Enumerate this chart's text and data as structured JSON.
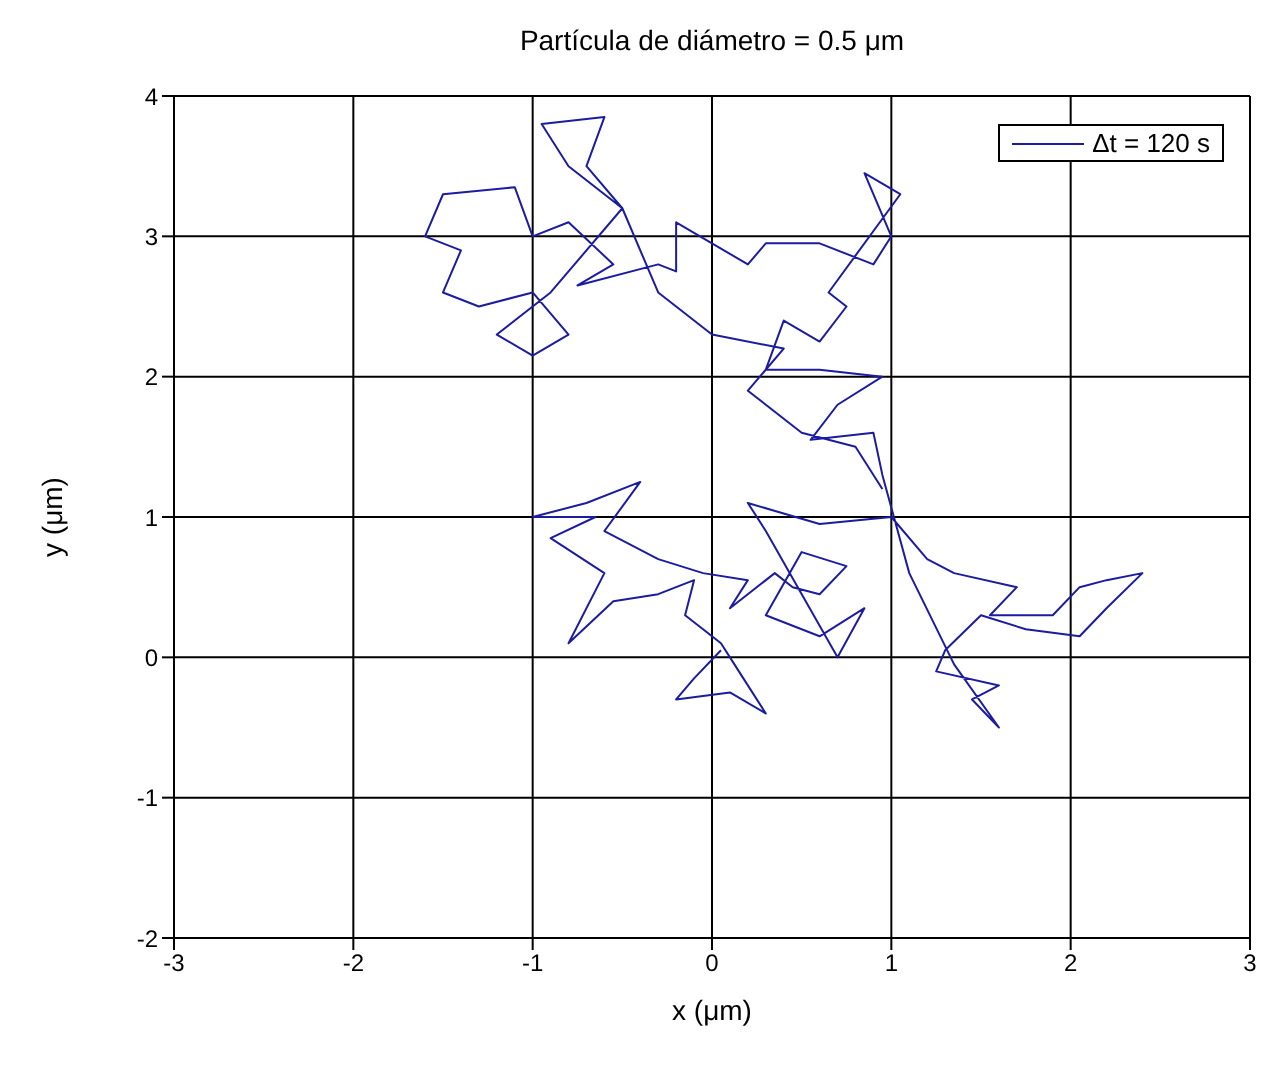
{
  "chart_data": {
    "type": "line",
    "title": "Partícula  de diámetro = 0.5 μm",
    "xlabel": "x (μm)",
    "ylabel": "y (μm)",
    "xlim": [
      -3,
      3
    ],
    "xticks": [
      -3,
      -2,
      -1,
      0,
      1,
      2,
      3
    ],
    "ylim": [
      -2,
      4
    ],
    "yticks": [
      -2,
      -1,
      0,
      1,
      2,
      3,
      4
    ],
    "grid": true,
    "legend": "top right",
    "marker": "none",
    "line_style": "solid",
    "series": [
      {
        "name": "Δt = 120 s",
        "color": "#1c1ca0",
        "x": [
          0.05,
          -0.1,
          -0.2,
          0.1,
          0.3,
          0.15,
          0.05,
          -0.15,
          -0.1,
          -0.3,
          -0.55,
          -0.8,
          -0.6,
          -0.9,
          -0.65,
          -1.0,
          -0.7,
          -0.4,
          -0.6,
          -0.3,
          -0.05,
          0.2,
          0.1,
          0.35,
          0.45,
          0.6,
          0.75,
          0.5,
          0.3,
          0.6,
          0.85,
          0.7,
          0.3,
          0.2,
          0.6,
          1.0,
          1.2,
          1.35,
          1.7,
          1.55,
          1.9,
          2.05,
          2.2,
          2.4,
          2.2,
          2.05,
          1.75,
          1.5,
          1.3,
          1.25,
          1.6,
          1.45,
          1.6,
          1.35,
          1.1,
          0.95,
          0.9,
          0.55,
          0.7,
          0.95,
          0.6,
          0.3,
          0.4,
          0.6,
          0.75,
          0.65,
          1.05,
          0.85,
          1.0,
          0.9,
          0.6,
          0.3,
          0.2,
          -0.2,
          -0.2,
          -0.3,
          -0.75,
          -0.55,
          -0.8,
          -1.0,
          -1.1,
          -1.5,
          -1.6,
          -1.4,
          -1.5,
          -1.3,
          -1.0,
          -0.8,
          -1.0,
          -1.2,
          -0.9,
          -0.5,
          -0.7,
          -0.6,
          -0.95,
          -0.8,
          -0.5,
          -0.3,
          0.0,
          0.4,
          0.2,
          0.5,
          0.8,
          0.95
        ],
        "values": [
          0.05,
          -0.15,
          -0.3,
          -0.25,
          -0.4,
          -0.1,
          0.1,
          0.3,
          0.55,
          0.45,
          0.4,
          0.1,
          0.6,
          0.85,
          1.0,
          1.0,
          1.1,
          1.25,
          0.9,
          0.7,
          0.6,
          0.55,
          0.35,
          0.6,
          0.5,
          0.45,
          0.65,
          0.75,
          0.3,
          0.15,
          0.35,
          0.0,
          0.9,
          1.1,
          0.95,
          1.0,
          0.7,
          0.6,
          0.5,
          0.3,
          0.3,
          0.5,
          0.55,
          0.6,
          0.35,
          0.15,
          0.2,
          0.3,
          0.05,
          -0.1,
          -0.2,
          -0.3,
          -0.5,
          -0.05,
          0.6,
          1.3,
          1.6,
          1.55,
          1.8,
          2.0,
          2.05,
          2.05,
          2.4,
          2.25,
          2.5,
          2.6,
          3.3,
          3.45,
          3.0,
          2.8,
          2.95,
          2.95,
          2.8,
          3.1,
          2.75,
          2.8,
          2.65,
          2.8,
          3.1,
          3.0,
          3.35,
          3.3,
          3.0,
          2.9,
          2.6,
          2.5,
          2.6,
          2.3,
          2.15,
          2.3,
          2.6,
          3.2,
          3.5,
          3.85,
          3.8,
          3.5,
          3.2,
          2.6,
          2.3,
          2.2,
          1.9,
          1.6,
          1.5,
          1.2
        ]
      }
    ]
  }
}
